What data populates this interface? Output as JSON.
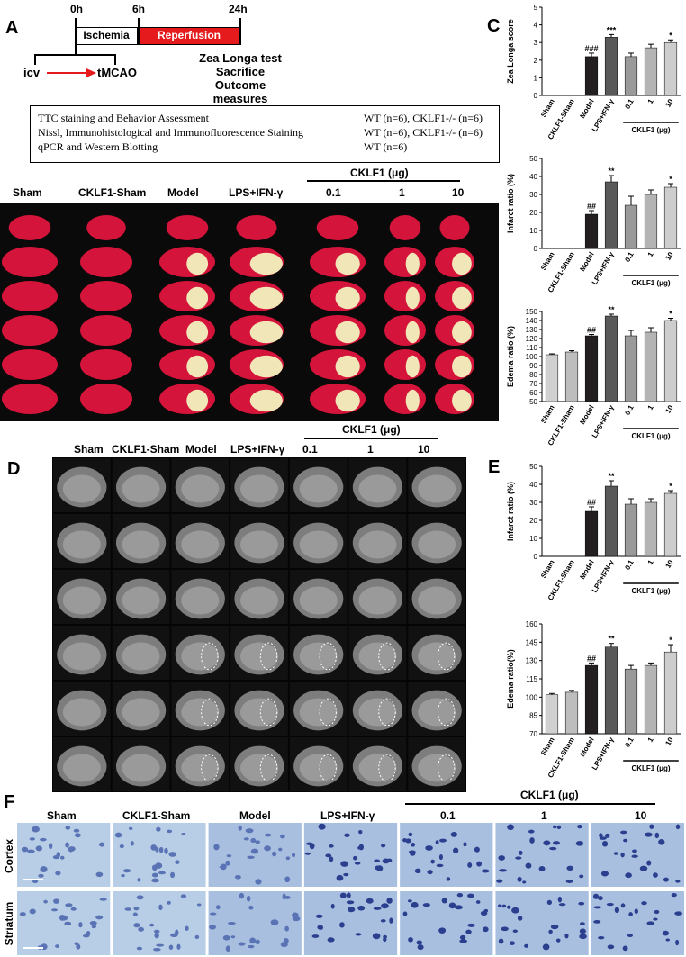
{
  "panel_labels": {
    "a": "A",
    "c": "C",
    "d": "D",
    "e": "E",
    "f": "F"
  },
  "timeline": {
    "t0": "0h",
    "t6": "6h",
    "t24": "24h",
    "ischemia": "Ischemia",
    "reperfusion": "Reperfusion",
    "icv": "icv",
    "tmcao": "tMCAO",
    "outcomes": [
      "Zea Longa test",
      "Sacrifice",
      "Outcome measures"
    ]
  },
  "design_table": [
    {
      "left": "TTC staining and Behavior Assessment",
      "right": "WT (n=6), CKLF1-/- (n=6)"
    },
    {
      "left": "Nissl, Immunohistological and Immunofluorescence Staining",
      "right": "WT (n=6), CKLF1-/- (n=6)"
    },
    {
      "left": "qPCR and Western Blotting",
      "right": "WT (n=6)"
    }
  ],
  "groups": [
    "Sham",
    "CKLF1-Sham",
    "Model",
    "LPS+IFN-γ",
    "0.1",
    "1",
    "10"
  ],
  "cklf1_header": "CKLF1 (μg)",
  "mri_groups": [
    "Sham",
    "CKLF1-Sham",
    "Model",
    "LPS+IFN-γ",
    "0.1",
    "1",
    "10"
  ],
  "nissl_rows": [
    "Cortex",
    "Striatum"
  ],
  "colors": {
    "ttc_red": "#c8102e",
    "reperfusion": "#e41a1c",
    "bar_dark": "#231f20",
    "bar_mid": "#595959",
    "bar_light": "#c8c8c8"
  },
  "chart_data": [
    {
      "id": "C1",
      "type": "bar",
      "ylabel": "Zea Longa score",
      "ylim": [
        0,
        5
      ],
      "yticks": [
        0,
        1,
        2,
        3,
        4,
        5
      ],
      "categories": [
        "Sham",
        "CKLF1-Sham",
        "Model",
        "LPS+IFN-γ",
        "0.1",
        "1",
        "10"
      ],
      "values": [
        0,
        0,
        2.2,
        3.3,
        2.2,
        2.7,
        3.0
      ],
      "errors": [
        0,
        0,
        0.2,
        0.15,
        0.2,
        0.2,
        0.15
      ],
      "annotations": [
        "",
        "",
        "###",
        "***",
        "",
        "",
        "*"
      ],
      "group_label": "CKLF1 (μg)"
    },
    {
      "id": "C2",
      "type": "bar",
      "ylabel": "Infarct ratio (%)",
      "ylim": [
        0,
        50
      ],
      "yticks": [
        0,
        10,
        20,
        30,
        40,
        50
      ],
      "categories": [
        "Sham",
        "CKLF1-Sham",
        "Model",
        "LPS+IFN-γ",
        "0.1",
        "1",
        "10"
      ],
      "values": [
        0,
        0,
        19,
        37,
        24,
        30,
        34
      ],
      "errors": [
        0,
        0,
        2,
        3.5,
        5,
        2.5,
        2
      ],
      "annotations": [
        "",
        "",
        "##",
        "**",
        "",
        "",
        "*"
      ],
      "group_label": "CKLF1 (μg)"
    },
    {
      "id": "C3",
      "type": "bar",
      "ylabel": "Edema ratio (%)",
      "ylim": [
        50,
        150
      ],
      "yticks": [
        50,
        60,
        70,
        80,
        90,
        100,
        110,
        120,
        130,
        140,
        150
      ],
      "categories": [
        "Sham",
        "CKLF1-Sham",
        "Model",
        "LPS+IFN-γ",
        "0.1",
        "1",
        "10"
      ],
      "values": [
        102,
        105,
        123,
        145,
        123,
        127,
        140
      ],
      "errors": [
        1,
        1.5,
        1.5,
        2,
        6,
        5,
        2.5
      ],
      "annotations": [
        "",
        "",
        "##",
        "**",
        "",
        "",
        "*"
      ],
      "group_label": "CKLF1 (μg)"
    },
    {
      "id": "E1",
      "type": "bar",
      "ylabel": "Infarct ratio (%)",
      "ylim": [
        0,
        50
      ],
      "yticks": [
        0,
        10,
        20,
        30,
        40,
        50
      ],
      "categories": [
        "Sham",
        "CKLF1-Sham",
        "Model",
        "LPS+IFN-γ",
        "0.1",
        "1",
        "10"
      ],
      "values": [
        0,
        0,
        25,
        39,
        29,
        30,
        35
      ],
      "errors": [
        0,
        0,
        2.5,
        3,
        3,
        2,
        1.5
      ],
      "annotations": [
        "",
        "",
        "##",
        "**",
        "",
        "",
        "*"
      ],
      "group_label": "CKLF1 (μg)"
    },
    {
      "id": "E2",
      "type": "bar",
      "ylabel": "Edema ratio(%)",
      "ylim": [
        70,
        160
      ],
      "yticks": [
        70,
        85,
        100,
        115,
        130,
        145,
        160
      ],
      "categories": [
        "Sham",
        "CKLF1-Sham",
        "Model",
        "LPS+IFN-γ",
        "0.1",
        "1",
        "10"
      ],
      "values": [
        102,
        104,
        126,
        141,
        123,
        126,
        137
      ],
      "errors": [
        1,
        1.5,
        2,
        3,
        3,
        2,
        6
      ],
      "annotations": [
        "",
        "",
        "##",
        "**",
        "",
        "",
        "*"
      ],
      "group_label": "CKLF1 (μg)"
    }
  ]
}
